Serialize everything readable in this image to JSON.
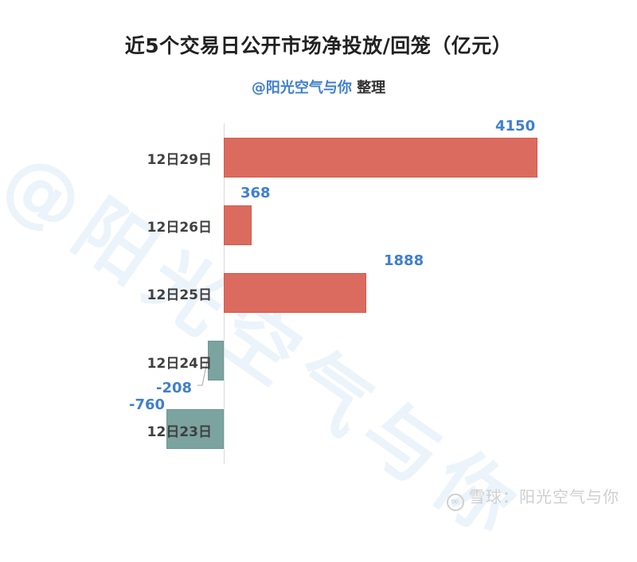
{
  "header": {
    "title": "近5个交易日公开市场净投放/回笼（亿元）",
    "subtitle_handle": "@阳光空气与你",
    "subtitle_suffix": " 整理"
  },
  "watermark": "@阳光空气与你",
  "footer": {
    "logo_icon": "xueqiu-logo-icon",
    "text": "雪球：阳光空气与你"
  },
  "colors": {
    "positive": "#db6b5e",
    "negative": "#7ba39f",
    "value_label": "#3f7fcf"
  },
  "chart_data": {
    "type": "bar",
    "orientation": "horizontal",
    "title": "近5个交易日公开市场净投放/回笼（亿元）",
    "subtitle": "@阳光空气与你 整理",
    "unit": "亿元",
    "categories": [
      "12日29日",
      "12日26日",
      "12日25日",
      "12日24日",
      "12日23日"
    ],
    "values": [
      4150,
      368,
      1888,
      -208,
      -760
    ],
    "data_labels": [
      "4150",
      "368",
      "1888",
      "-208",
      "-760"
    ],
    "xlabel": "",
    "ylabel": "",
    "xlim": [
      -760,
      4150
    ],
    "grid": false,
    "legend": null
  }
}
